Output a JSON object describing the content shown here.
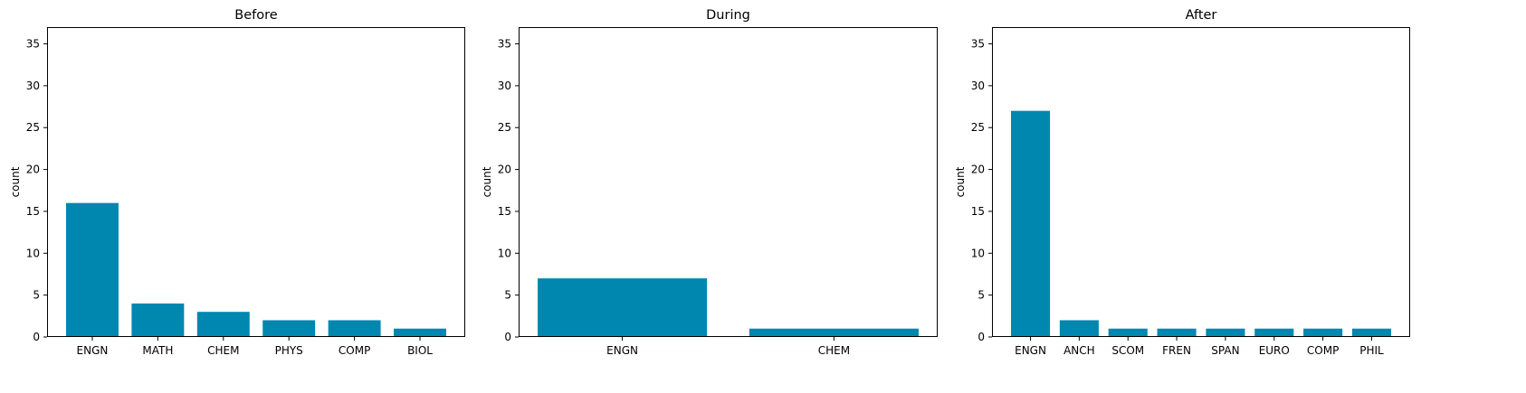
{
  "chart_data": [
    {
      "type": "bar",
      "title": "Before",
      "ylabel": "count",
      "xlabel": "",
      "categories": [
        "ENGN",
        "MATH",
        "CHEM",
        "PHYS",
        "COMP",
        "BIOL"
      ],
      "values": [
        16,
        4,
        3,
        2,
        2,
        1
      ],
      "ylim": [
        0,
        37
      ],
      "yticks": [
        0,
        5,
        10,
        15,
        20,
        25,
        30,
        35
      ],
      "grid": false
    },
    {
      "type": "bar",
      "title": "During",
      "ylabel": "count",
      "xlabel": "",
      "categories": [
        "ENGN",
        "CHEM"
      ],
      "values": [
        7,
        1
      ],
      "ylim": [
        0,
        37
      ],
      "yticks": [
        0,
        5,
        10,
        15,
        20,
        25,
        30,
        35
      ],
      "grid": false
    },
    {
      "type": "bar",
      "title": "After",
      "ylabel": "count",
      "xlabel": "",
      "categories": [
        "ENGN",
        "ANCH",
        "SCOM",
        "FREN",
        "SPAN",
        "EURO",
        "COMP",
        "PHIL"
      ],
      "values": [
        27,
        2,
        1,
        1,
        1,
        1,
        1,
        1
      ],
      "ylim": [
        0,
        37
      ],
      "yticks": [
        0,
        5,
        10,
        15,
        20,
        25,
        30,
        35
      ],
      "grid": false
    }
  ],
  "colors": {
    "bar": "#0087b0",
    "axis": "#000000"
  }
}
